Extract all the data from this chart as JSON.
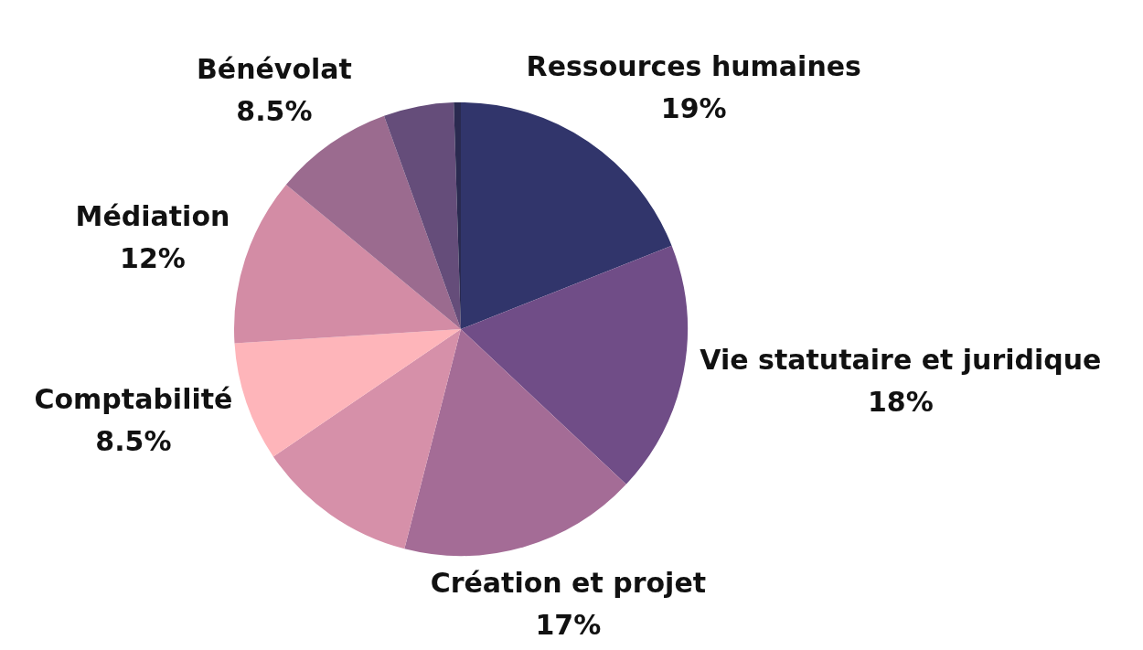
{
  "chart_data": {
    "type": "pie",
    "categories": [
      "Ressources humaines",
      "Vie statutaire et juridique",
      "Création et projet",
      null,
      "Comptabilité",
      "Médiation",
      "Bénévolat",
      null,
      null
    ],
    "values": [
      19,
      18,
      17,
      11.5,
      8.5,
      12,
      8.5,
      5,
      0.5
    ],
    "value_labels": [
      "19%",
      "18%",
      "17%",
      null,
      "8.5%",
      "12%",
      "8.5%",
      null,
      null
    ],
    "colors": [
      "#31356b",
      "#704d87",
      "#a46c96",
      "#d690a9",
      "#feb5ba",
      "#d38ca5",
      "#9b6b8f",
      "#654d7a",
      "#2a2a50"
    ],
    "legend": false
  }
}
